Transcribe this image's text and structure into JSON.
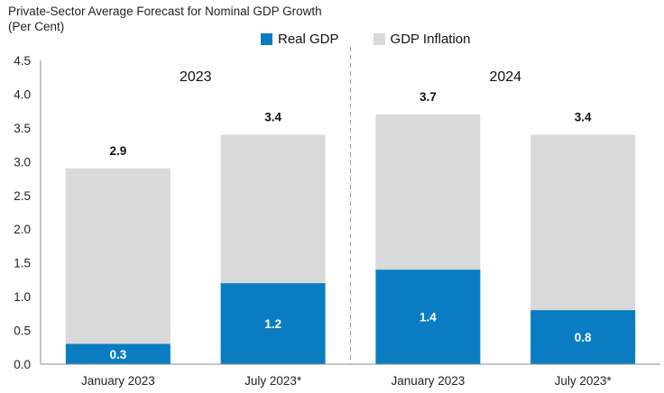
{
  "chart_data": {
    "type": "bar",
    "stacked": true,
    "title_line1": "Private-Sector Average Forecast for Nominal GDP Growth",
    "title_line2": "(Per Cent)",
    "groups": [
      "2023",
      "2024"
    ],
    "categories": [
      "January 2023",
      "July 2023*",
      "January 2023",
      "July 2023*"
    ],
    "category_group": [
      0,
      0,
      1,
      1
    ],
    "series": [
      {
        "name": "Real GDP",
        "values": [
          0.3,
          1.2,
          1.4,
          0.8
        ]
      },
      {
        "name": "GDP Inflation",
        "values": [
          2.6,
          2.2,
          2.3,
          2.6
        ]
      }
    ],
    "totals": [
      2.9,
      3.4,
      3.7,
      3.4
    ],
    "yticks": [
      "0.0",
      "0.5",
      "1.0",
      "1.5",
      "2.0",
      "2.5",
      "3.0",
      "3.5",
      "4.0",
      "4.5"
    ],
    "ylim": [
      0,
      4.5
    ],
    "grid": false,
    "legend_position": "top"
  },
  "colors": {
    "real_gdp": "#0a7dc2",
    "gdp_inflation": "#d9d9d9",
    "axis": "#8c8c8c",
    "divider": "#999999"
  }
}
